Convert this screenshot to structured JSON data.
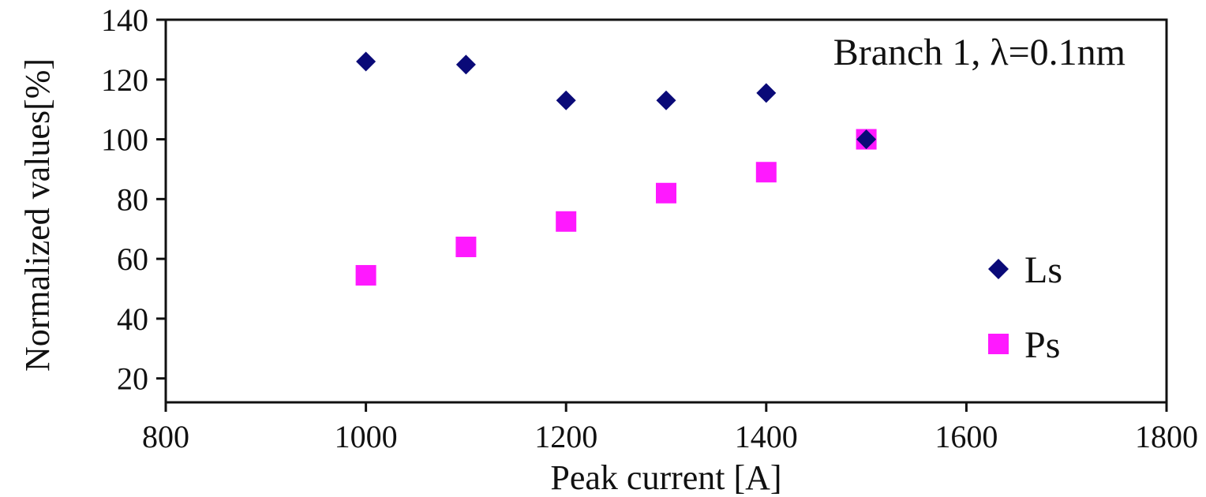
{
  "chart_data": {
    "type": "scatter",
    "title": "",
    "annotation": "Branch 1, λ=0.1nm",
    "xlabel": "Peak current [A]",
    "ylabel": "Normalized values[%]",
    "xlim": [
      800,
      1800
    ],
    "ylim": [
      12,
      140
    ],
    "xticks": [
      800,
      1000,
      1200,
      1400,
      1600,
      1800
    ],
    "yticks": [
      20,
      40,
      60,
      80,
      100,
      120,
      140
    ],
    "grid": false,
    "legend_position": "right",
    "series": [
      {
        "name": "Ls",
        "marker": "diamond",
        "color": "#0a0a78",
        "x": [
          1000,
          1100,
          1200,
          1300,
          1400,
          1500
        ],
        "y": [
          126,
          125,
          113,
          113,
          115.5,
          100
        ]
      },
      {
        "name": "Ps",
        "marker": "square",
        "color": "#ff19ff",
        "x": [
          1000,
          1100,
          1200,
          1300,
          1400,
          1500
        ],
        "y": [
          54.5,
          64,
          72.5,
          82,
          89,
          100
        ]
      }
    ]
  }
}
